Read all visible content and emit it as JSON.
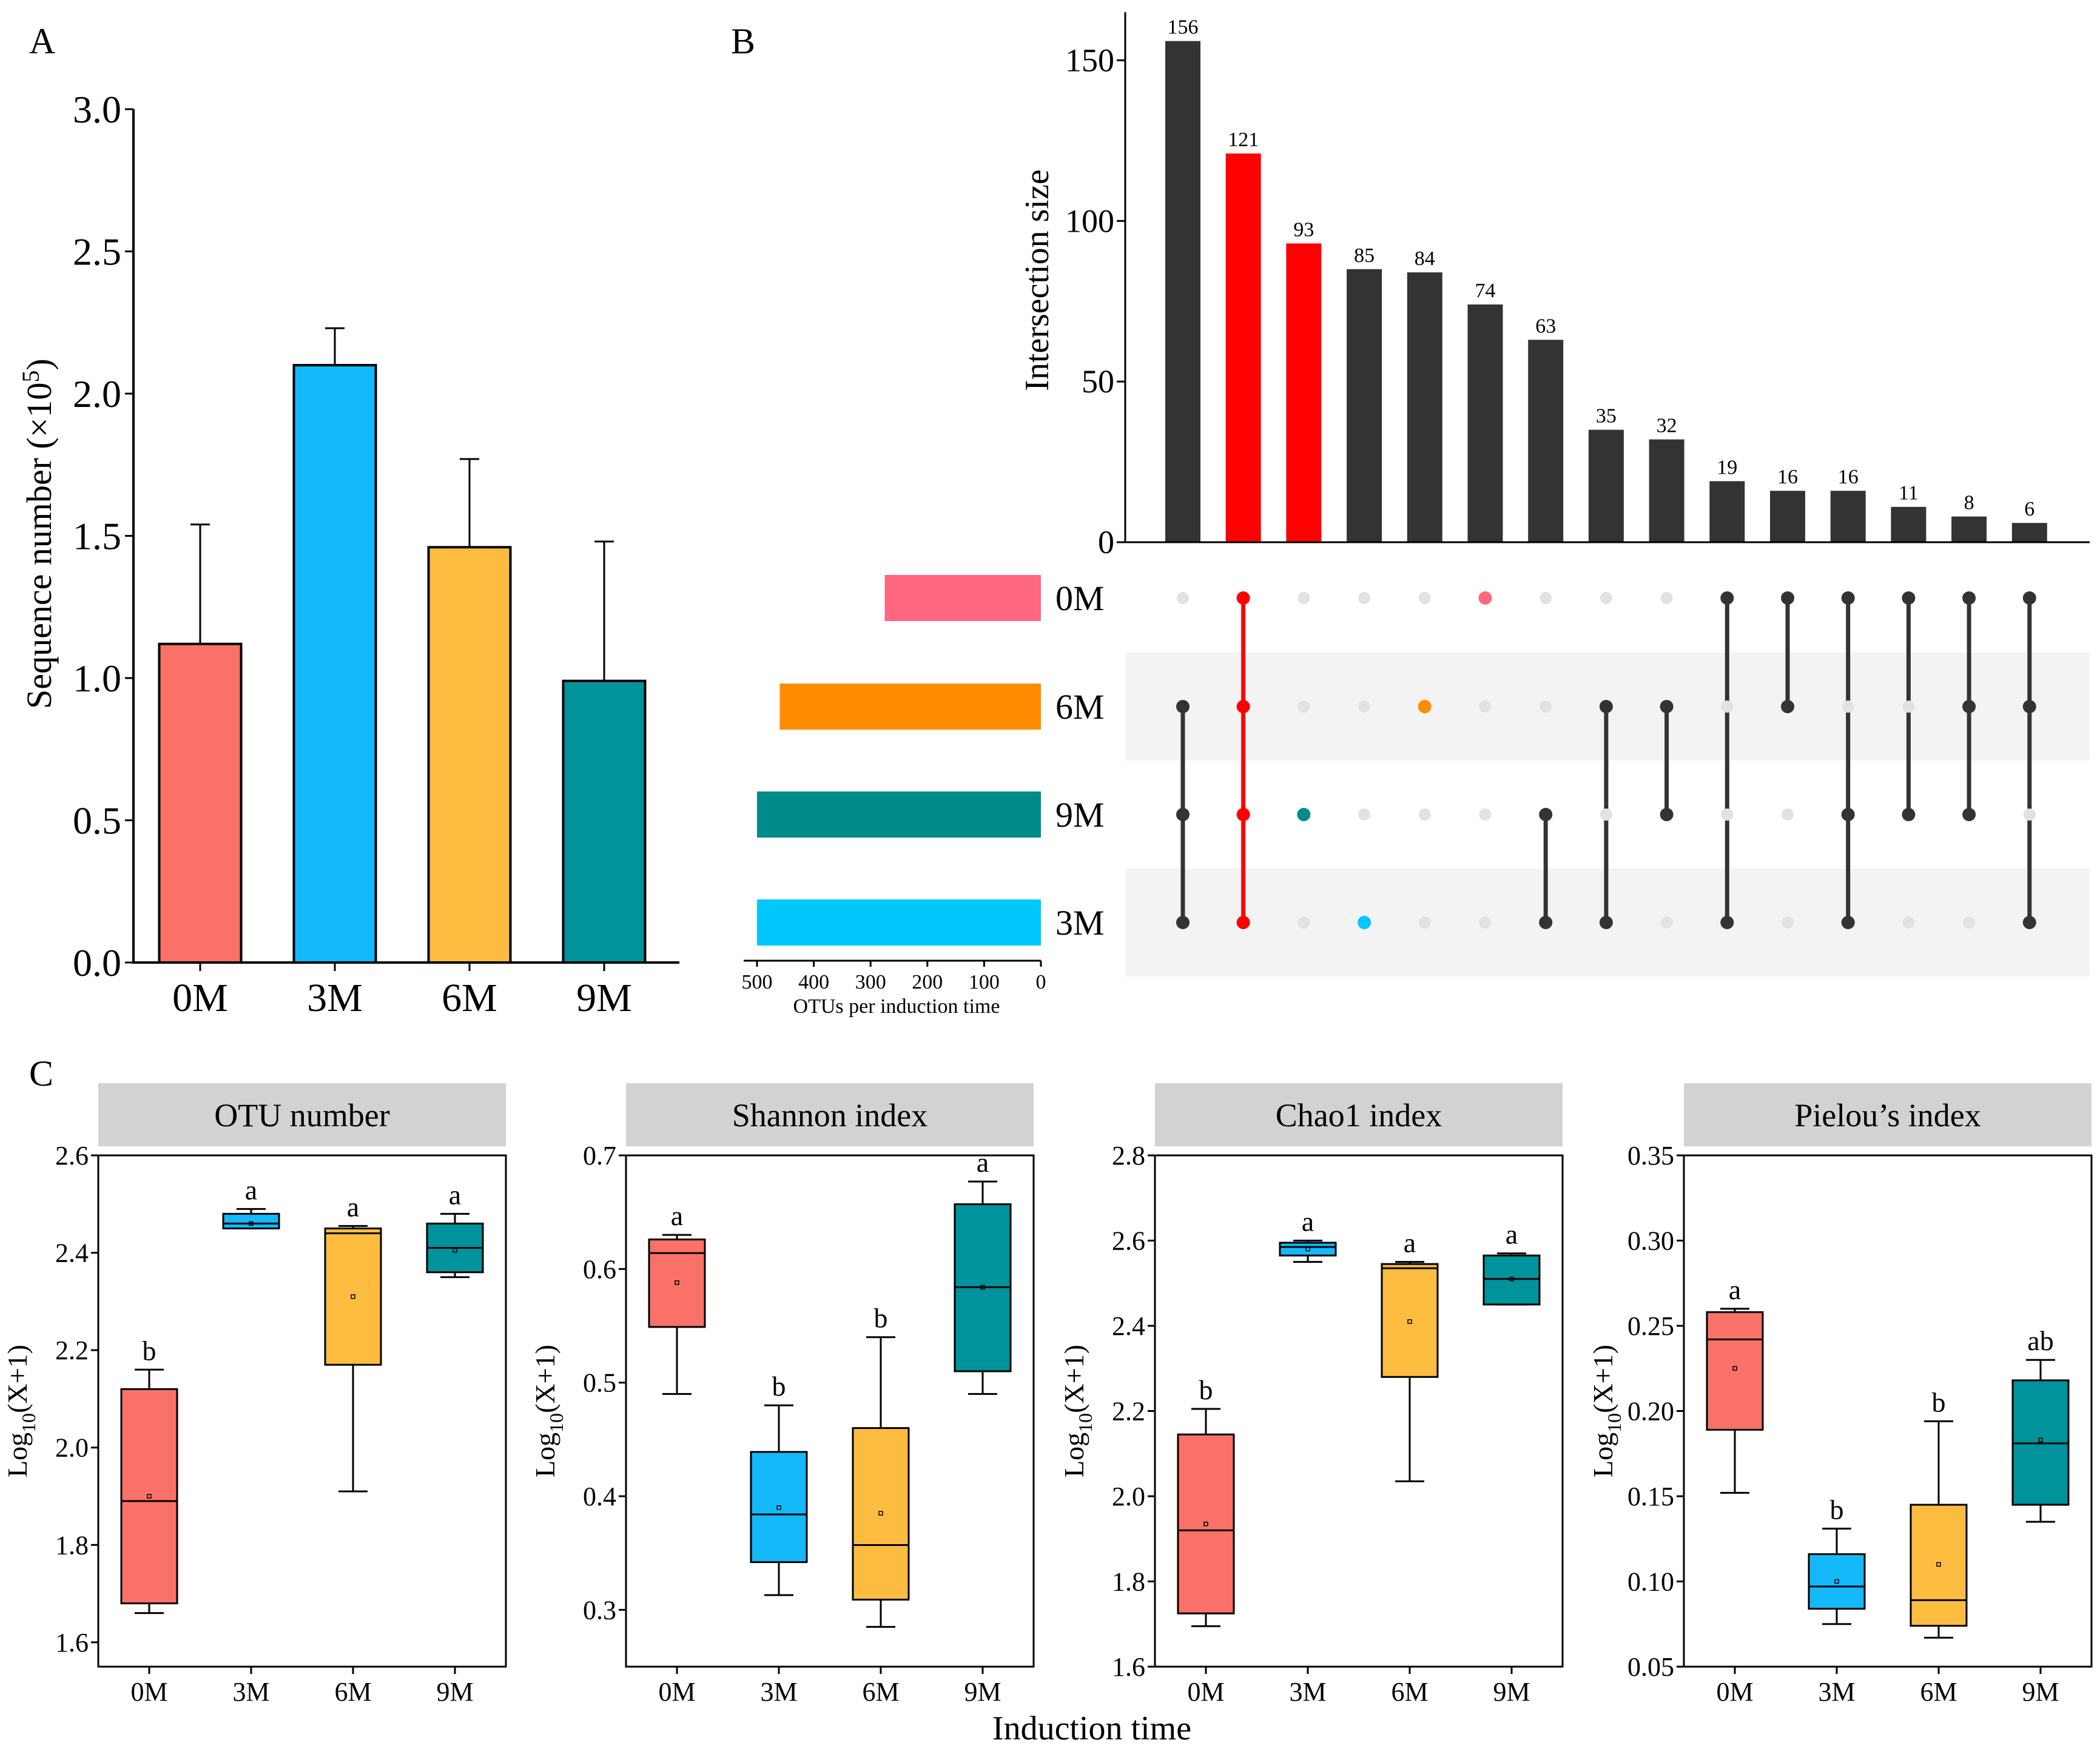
{
  "panel_labels": {
    "a": "A",
    "b": "B",
    "c": "C"
  },
  "colors": {
    "m0": "#fa7167",
    "m3": "#13b9f9",
    "m6": "#fcbc40",
    "m9": "#00939c",
    "dark": "#333333",
    "red": "#ff0000",
    "set_0M": "#ff6680",
    "set_6M": "#ff8c00",
    "set_9M": "#008b8b",
    "set_3M": "#00c8ff",
    "facet_bg": "#d2d2d2",
    "band": "#f3f3f3",
    "inactive": "#e2e2e2"
  },
  "chart_data": [
    {
      "id": "A",
      "type": "bar",
      "categories": [
        "0M",
        "3M",
        "6M",
        "9M"
      ],
      "values": [
        1.12,
        2.1,
        1.46,
        0.99
      ],
      "errors": [
        0.42,
        0.13,
        0.31,
        0.49
      ],
      "ylim": [
        0,
        3.0
      ],
      "yticks": [
        "0.0",
        "0.5",
        "1.0",
        "1.5",
        "2.0",
        "2.5",
        "3.0"
      ],
      "ylabel_main": "Sequence number (×10",
      "ylabel_sup": "5",
      "ylabel_end": ")"
    },
    {
      "id": "B",
      "type": "bar",
      "subtype": "upset",
      "ylabel": "Intersection size",
      "ylim": [
        0,
        165
      ],
      "yticks": [
        "0",
        "50",
        "100",
        "150"
      ],
      "intersections": [
        {
          "size": 156,
          "label": "156",
          "sets": [
            "6M",
            "9M",
            "3M"
          ],
          "highlight": false
        },
        {
          "size": 121,
          "label": "121",
          "sets": [
            "0M",
            "6M",
            "9M",
            "3M"
          ],
          "highlight": true
        },
        {
          "size": 93,
          "label": "93",
          "sets": [
            "9M"
          ],
          "highlight": true
        },
        {
          "size": 85,
          "label": "85",
          "sets": [
            "3M"
          ],
          "highlight": false
        },
        {
          "size": 84,
          "label": "84",
          "sets": [
            "6M"
          ],
          "highlight": false
        },
        {
          "size": 74,
          "label": "74",
          "sets": [
            "0M"
          ],
          "highlight": false
        },
        {
          "size": 63,
          "label": "63",
          "sets": [
            "9M",
            "3M"
          ],
          "highlight": false
        },
        {
          "size": 35,
          "label": "35",
          "sets": [
            "6M",
            "3M"
          ],
          "highlight": false
        },
        {
          "size": 32,
          "label": "32",
          "sets": [
            "6M",
            "9M"
          ],
          "highlight": false
        },
        {
          "size": 19,
          "label": "19",
          "sets": [
            "0M",
            "3M"
          ],
          "highlight": false
        },
        {
          "size": 16,
          "label": "16",
          "sets": [
            "0M",
            "6M"
          ],
          "highlight": false
        },
        {
          "size": 16,
          "label": "16",
          "sets": [
            "0M",
            "9M",
            "3M"
          ],
          "highlight": false
        },
        {
          "size": 11,
          "label": "11",
          "sets": [
            "0M",
            "9M"
          ],
          "highlight": false
        },
        {
          "size": 8,
          "label": "8",
          "sets": [
            "0M",
            "6M",
            "9M"
          ],
          "highlight": false
        },
        {
          "size": 6,
          "label": "6",
          "sets": [
            "0M",
            "6M",
            "3M"
          ],
          "highlight": false
        }
      ],
      "set_names": [
        "0M",
        "6M",
        "9M",
        "3M"
      ],
      "set_sizes": [
        275,
        460,
        500,
        500
      ],
      "set_xlim": [
        0,
        500
      ],
      "set_xticks": [
        "500",
        "400",
        "300",
        "200",
        "100",
        "0"
      ],
      "set_xlabel": "OTUs per induction time"
    },
    {
      "id": "C",
      "type": "box",
      "shared_xlabel": "Induction time",
      "ylabel_main": "Log",
      "ylabel_sub": "10",
      "ylabel_end": "(X+1)",
      "categories": [
        "0M",
        "3M",
        "6M",
        "9M"
      ],
      "facets": [
        {
          "title": "OTU number",
          "ylim": [
            1.55,
            2.6
          ],
          "yticks": [
            "1.6",
            "1.8",
            "2.0",
            "2.2",
            "2.4",
            "2.6"
          ],
          "boxes": [
            {
              "min": 1.66,
              "q1": 1.68,
              "median": 1.89,
              "q3": 2.12,
              "max": 2.16,
              "mean": 1.9,
              "letter": "b"
            },
            {
              "min": 2.45,
              "q1": 2.45,
              "median": 2.46,
              "q3": 2.48,
              "max": 2.49,
              "mean": 2.46,
              "letter": "a"
            },
            {
              "min": 1.91,
              "q1": 2.17,
              "median": 2.44,
              "q3": 2.45,
              "max": 2.455,
              "mean": 2.31,
              "letter": "a"
            },
            {
              "min": 2.35,
              "q1": 2.36,
              "median": 2.41,
              "q3": 2.46,
              "max": 2.48,
              "mean": 2.405,
              "letter": "a"
            }
          ]
        },
        {
          "title": "Shannon index",
          "ylim": [
            0.25,
            0.7
          ],
          "yticks": [
            "0.3",
            "0.4",
            "0.5",
            "0.6",
            "0.7"
          ],
          "boxes": [
            {
              "min": 0.49,
              "q1": 0.549,
              "median": 0.614,
              "q3": 0.626,
              "max": 0.63,
              "mean": 0.588,
              "letter": "a"
            },
            {
              "min": 0.313,
              "q1": 0.342,
              "median": 0.384,
              "q3": 0.439,
              "max": 0.48,
              "mean": 0.39,
              "letter": "b"
            },
            {
              "min": 0.285,
              "q1": 0.309,
              "median": 0.357,
              "q3": 0.46,
              "max": 0.54,
              "mean": 0.385,
              "letter": "b"
            },
            {
              "min": 0.49,
              "q1": 0.51,
              "median": 0.584,
              "q3": 0.657,
              "max": 0.677,
              "mean": 0.584,
              "letter": "a"
            }
          ]
        },
        {
          "title": "Chao1 index",
          "ylim": [
            1.6,
            2.8
          ],
          "yticks": [
            "1.6",
            "1.8",
            "2.0",
            "2.2",
            "2.4",
            "2.6",
            "2.8"
          ],
          "boxes": [
            {
              "min": 1.695,
              "q1": 1.725,
              "median": 1.92,
              "q3": 2.145,
              "max": 2.205,
              "mean": 1.935,
              "letter": "b"
            },
            {
              "min": 2.55,
              "q1": 2.565,
              "median": 2.585,
              "q3": 2.595,
              "max": 2.6,
              "mean": 2.58,
              "letter": "a"
            },
            {
              "min": 2.035,
              "q1": 2.28,
              "median": 2.535,
              "q3": 2.545,
              "max": 2.55,
              "mean": 2.41,
              "letter": "a"
            },
            {
              "min": 2.45,
              "q1": 2.45,
              "median": 2.51,
              "q3": 2.565,
              "max": 2.57,
              "mean": 2.51,
              "letter": "a"
            }
          ]
        },
        {
          "title": "Pielou’s index",
          "ylim": [
            0.05,
            0.35
          ],
          "yticks": [
            "0.05",
            "0.10",
            "0.15",
            "0.20",
            "0.25",
            "0.30",
            "0.35"
          ],
          "boxes": [
            {
              "min": 0.152,
              "q1": 0.189,
              "median": 0.242,
              "q3": 0.258,
              "max": 0.26,
              "mean": 0.225,
              "letter": "a"
            },
            {
              "min": 0.075,
              "q1": 0.084,
              "median": 0.097,
              "q3": 0.116,
              "max": 0.131,
              "mean": 0.1,
              "letter": "b"
            },
            {
              "min": 0.067,
              "q1": 0.074,
              "median": 0.089,
              "q3": 0.145,
              "max": 0.194,
              "mean": 0.11,
              "letter": "b"
            },
            {
              "min": 0.135,
              "q1": 0.145,
              "median": 0.181,
              "q3": 0.218,
              "max": 0.23,
              "mean": 0.183,
              "letter": "ab"
            }
          ]
        }
      ]
    }
  ]
}
